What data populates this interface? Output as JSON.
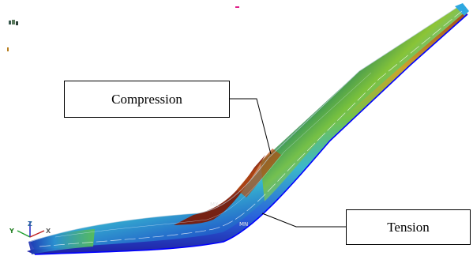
{
  "annotations": {
    "compression_label": "Compression",
    "tension_label": "Tension"
  },
  "node_labels": {
    "max_label": "MX",
    "min_label": "MN"
  },
  "triad_axes": {
    "y": "Y",
    "z": "Z",
    "x": "X"
  },
  "colors": {
    "compression_high": "#8b1a00",
    "mid": "#e6d81a",
    "tension_low": "#1a1aa8",
    "edge": "#0000ff"
  },
  "icons": {
    "corner_logo": "ansys-logo-icon",
    "axis_triad": "axis-triad-icon"
  }
}
